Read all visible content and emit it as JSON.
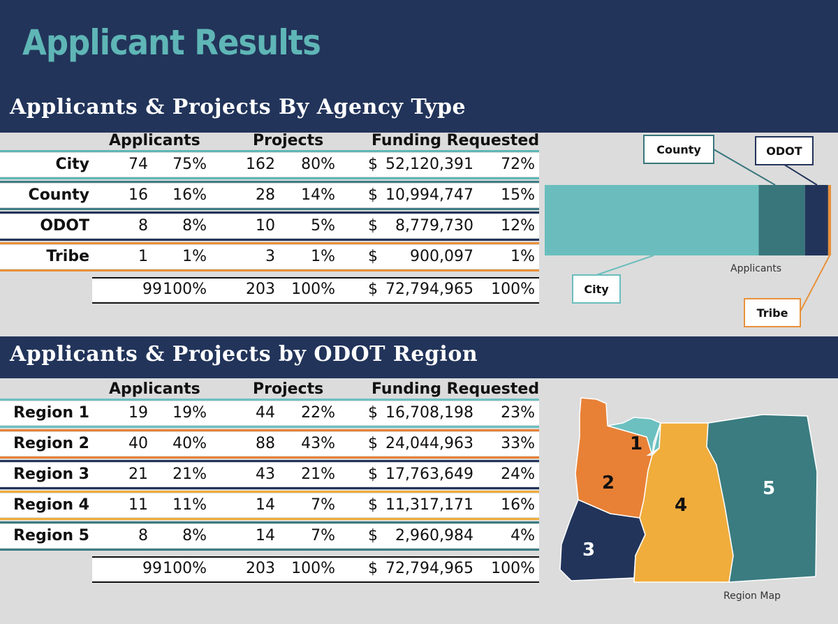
{
  "title": "Applicant Results",
  "agency": {
    "heading": "Applicants & Projects By Agency Type",
    "col_applicants": "Applicants",
    "col_projects": "Projects",
    "col_funding": "Funding Requested",
    "rows": [
      {
        "label": "City",
        "apps": "74",
        "apps_pct": "75%",
        "proj": "162",
        "proj_pct": "80%",
        "dollar": "$",
        "funding": "52,120,391",
        "fund_pct": "72%",
        "color": "#5fb6b6"
      },
      {
        "label": "County",
        "apps": "16",
        "apps_pct": "16%",
        "proj": "28",
        "proj_pct": "14%",
        "dollar": "$",
        "funding": "10,994,747",
        "fund_pct": "15%",
        "color": "#3f7f86"
      },
      {
        "label": "ODOT",
        "apps": "8",
        "apps_pct": "8%",
        "proj": "10",
        "proj_pct": "5%",
        "dollar": "$",
        "funding": "8,779,730",
        "fund_pct": "12%",
        "color": "#22345a"
      },
      {
        "label": "Tribe",
        "apps": "1",
        "apps_pct": "1%",
        "proj": "3",
        "proj_pct": "1%",
        "dollar": "$",
        "funding": "900,097",
        "fund_pct": "1%",
        "color": "#e8913a"
      }
    ],
    "total": {
      "apps": "99",
      "apps_pct": "100%",
      "proj": "203",
      "proj_pct": "100%",
      "dollar": "$",
      "funding": "72,794,965",
      "fund_pct": "100%"
    }
  },
  "region": {
    "heading": "Applicants & Projects by ODOT Region",
    "col_applicants": "Applicants",
    "col_projects": "Projects",
    "col_funding": "Funding Requested",
    "rows": [
      {
        "label": "Region 1",
        "apps": "19",
        "apps_pct": "19%",
        "proj": "44",
        "proj_pct": "22%",
        "dollar": "$",
        "funding": "16,708,198",
        "fund_pct": "23%",
        "color": "#6cc0c0"
      },
      {
        "label": "Region 2",
        "apps": "40",
        "apps_pct": "40%",
        "proj": "88",
        "proj_pct": "43%",
        "dollar": "$",
        "funding": "24,044,963",
        "fund_pct": "33%",
        "color": "#e88136"
      },
      {
        "label": "Region 3",
        "apps": "21",
        "apps_pct": "21%",
        "proj": "43",
        "proj_pct": "21%",
        "dollar": "$",
        "funding": "17,763,649",
        "fund_pct": "24%",
        "color": "#22345a"
      },
      {
        "label": "Region 4",
        "apps": "11",
        "apps_pct": "11%",
        "proj": "14",
        "proj_pct": "7%",
        "dollar": "$",
        "funding": "11,317,171",
        "fund_pct": "16%",
        "color": "#f0ad3c"
      },
      {
        "label": "Region 5",
        "apps": "8",
        "apps_pct": "8%",
        "proj": "14",
        "proj_pct": "7%",
        "dollar": "$",
        "funding": "2,960,984",
        "fund_pct": "4%",
        "color": "#3a7c80"
      }
    ],
    "total": {
      "apps": "99",
      "apps_pct": "100%",
      "proj": "203",
      "proj_pct": "100%",
      "dollar": "$",
      "funding": "72,794,965",
      "fund_pct": "100%"
    }
  },
  "chart_data": {
    "type": "bar",
    "orientation": "horizontal-stacked",
    "xlabel": "Applicants",
    "categories": [
      "Applicants"
    ],
    "series": [
      {
        "name": "City",
        "values": [
          74
        ],
        "color": "#6bbdbd"
      },
      {
        "name": "County",
        "values": [
          16
        ],
        "color": "#38767c"
      },
      {
        "name": "ODOT",
        "values": [
          8
        ],
        "color": "#22345a"
      },
      {
        "name": "Tribe",
        "values": [
          1
        ],
        "color": "#e8913a"
      }
    ],
    "grid": false
  },
  "map": {
    "caption": "Region Map",
    "regions": [
      {
        "label": "1",
        "color": "#6cc0c0"
      },
      {
        "label": "2",
        "color": "#e88136"
      },
      {
        "label": "3",
        "color": "#22345a"
      },
      {
        "label": "4",
        "color": "#f0ad3c"
      },
      {
        "label": "5",
        "color": "#3a7c80"
      }
    ]
  }
}
